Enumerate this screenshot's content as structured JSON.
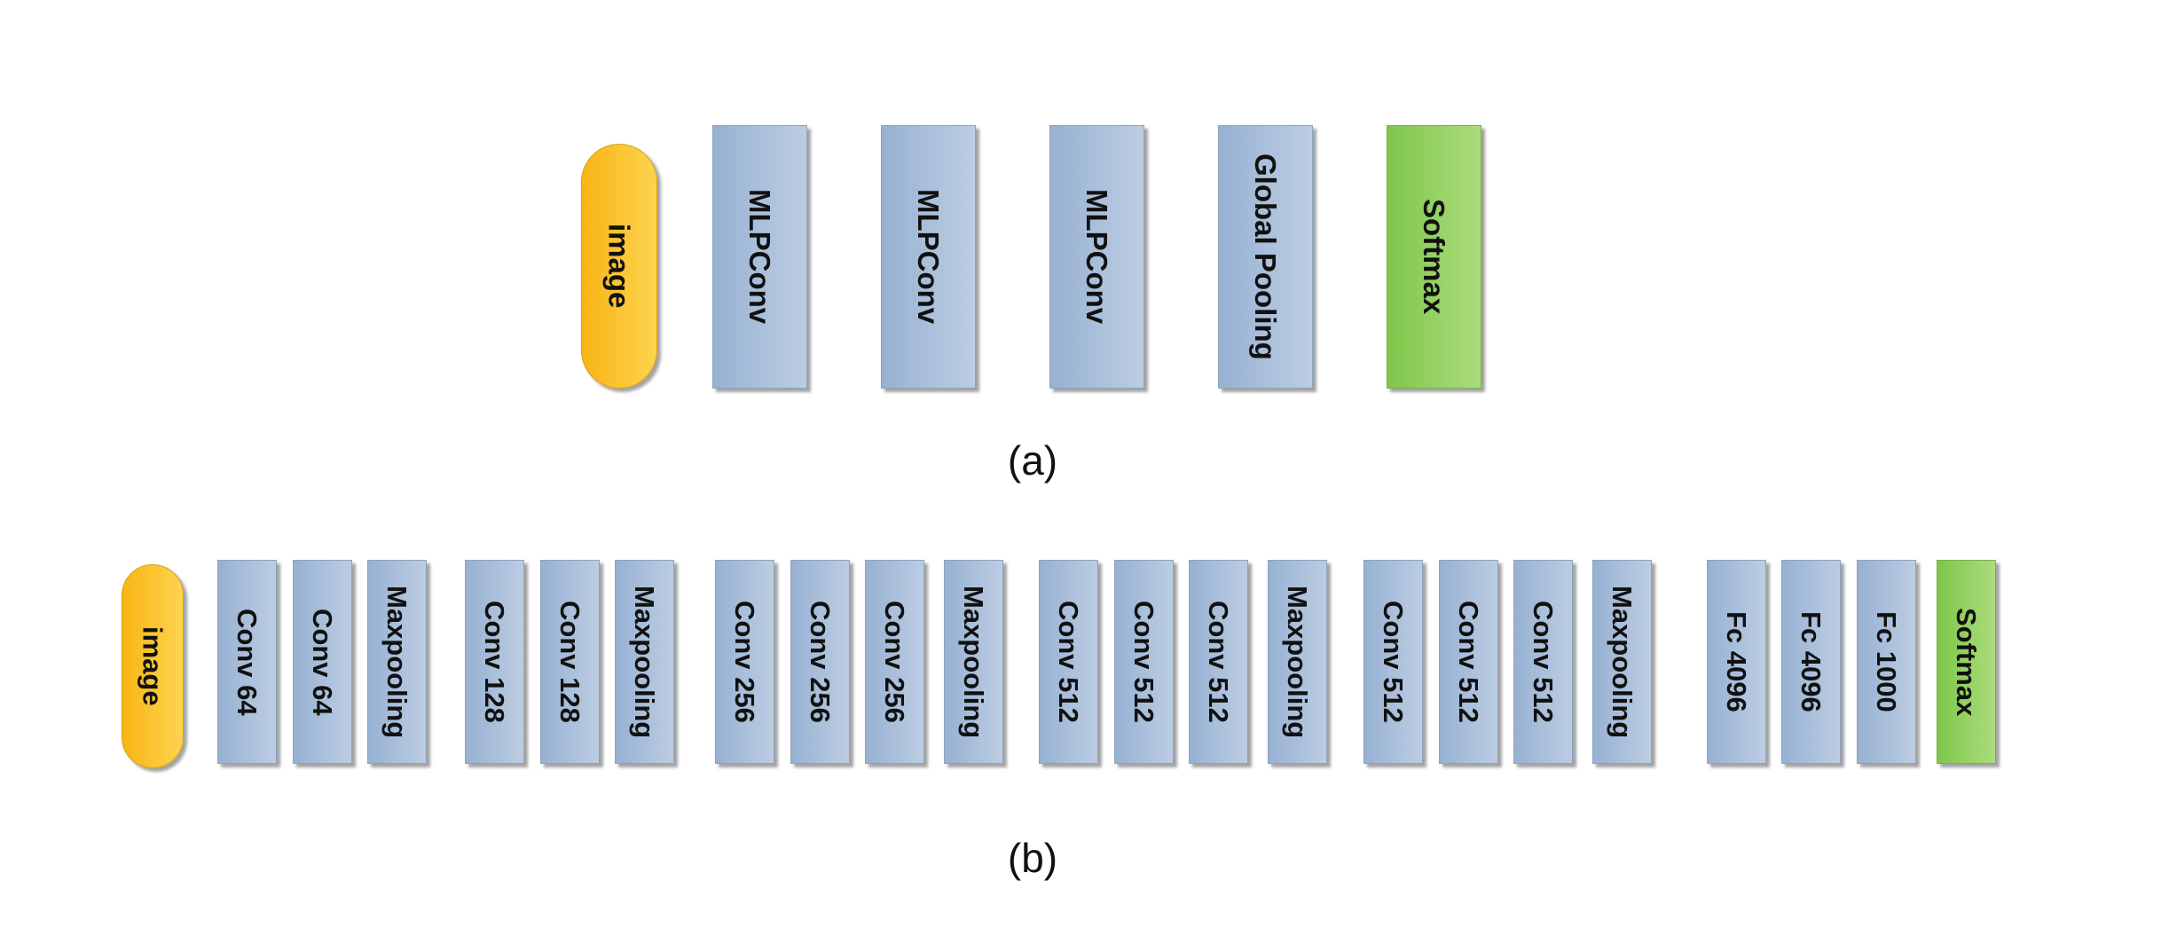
{
  "diagram_a": {
    "caption": "(a)",
    "input": "image",
    "layers": [
      "MLPConv",
      "MLPConv",
      "MLPConv",
      "Global Pooling"
    ],
    "output": "Softmax"
  },
  "diagram_b": {
    "caption": "(b)",
    "input": "image",
    "groups": [
      [
        "Conv 64",
        "Conv 64",
        "Maxpooling"
      ],
      [
        "Conv 128",
        "Conv 128",
        "Maxpooling"
      ],
      [
        "Conv 256",
        "Conv 256",
        "Conv 256",
        "Maxpooling"
      ],
      [
        "Conv 512",
        "Conv 512",
        "Conv 512",
        "Maxpooling"
      ],
      [
        "Conv 512",
        "Conv 512",
        "Conv 512",
        "Maxpooling"
      ],
      [
        "Fc 4096",
        "Fc 4096",
        "Fc 1000"
      ]
    ],
    "output": "Softmax"
  },
  "colors": {
    "layer_fill": "#a9bfdb",
    "softmax_fill": "#92d050",
    "image_fill": "#fbc02d"
  }
}
